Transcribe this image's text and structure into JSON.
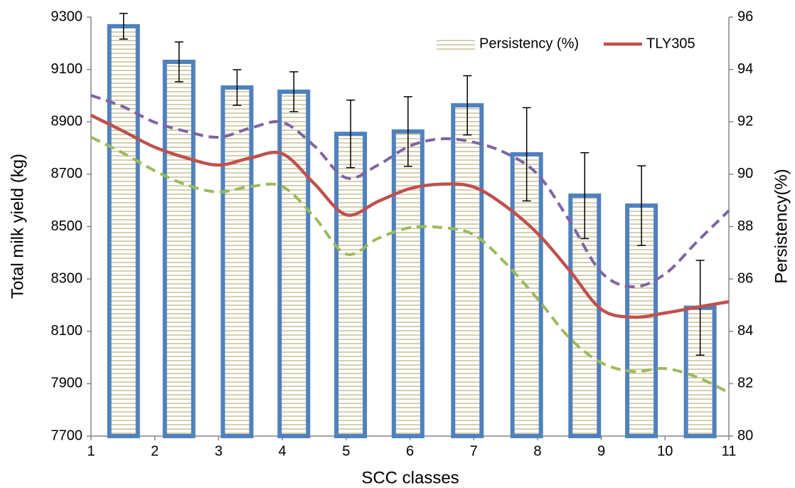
{
  "chart_data": {
    "type": "combo",
    "xlabel": "SCC classes",
    "ylabel": "Total milk yield (kg)",
    "y2label": "Persistency(%)",
    "xlim": [
      1,
      11
    ],
    "xticks": [
      1,
      2,
      3,
      4,
      5,
      6,
      7,
      8,
      9,
      10,
      11
    ],
    "ylim": [
      7700,
      9300
    ],
    "yticks": [
      7700,
      7900,
      8100,
      8300,
      8500,
      8700,
      8900,
      9100,
      9300
    ],
    "y2lim": [
      80,
      96
    ],
    "y2ticks": [
      80,
      82,
      84,
      86,
      88,
      90,
      92,
      94,
      96
    ],
    "legend": "top-right",
    "series": [
      {
        "name": "Persistency (%)",
        "type": "bar",
        "axis": "y2",
        "color": "#4f81bd",
        "x": [
          1.51,
          2.38,
          3.29,
          4.18,
          5.07,
          5.97,
          6.9,
          7.83,
          8.74,
          9.63,
          10.55
        ],
        "values": [
          95.65,
          94.29,
          93.31,
          93.15,
          91.54,
          91.63,
          92.63,
          90.76,
          89.18,
          88.8,
          84.9
        ],
        "errors": [
          0.49,
          0.76,
          0.68,
          0.76,
          1.29,
          1.33,
          1.13,
          1.78,
          1.64,
          1.52,
          1.81
        ]
      },
      {
        "name": "TLY305",
        "type": "line",
        "color": "#c0504d",
        "dash": false,
        "x": [
          1,
          1.5,
          2,
          2.5,
          3,
          3.5,
          4,
          4.5,
          5,
          5.5,
          6,
          6.5,
          7,
          7.5,
          8,
          8.5,
          9,
          9.5,
          10,
          10.5,
          11
        ],
        "values": [
          8925,
          8865,
          8803,
          8762,
          8735,
          8762,
          8778,
          8664,
          8545,
          8596,
          8645,
          8662,
          8651,
          8578,
          8474,
          8333,
          8184,
          8154,
          8170,
          8192,
          8213
        ]
      },
      {
        "type": "line",
        "color": "#8064a2",
        "dash": true,
        "x": [
          1,
          1.5,
          2,
          2.5,
          3,
          3.5,
          4,
          4.5,
          5,
          5.5,
          6,
          6.5,
          7,
          7.5,
          8,
          8.5,
          9,
          9.5,
          10,
          10.5,
          11
        ],
        "values": [
          9001,
          8958,
          8898,
          8863,
          8841,
          8876,
          8898,
          8808,
          8686,
          8735,
          8808,
          8835,
          8822,
          8781,
          8700,
          8523,
          8325,
          8270,
          8319,
          8442,
          8561
        ]
      },
      {
        "type": "line",
        "color": "#9bbb59",
        "dash": true,
        "x": [
          1,
          1.5,
          2,
          2.5,
          3,
          3.5,
          4,
          4.5,
          5,
          5.5,
          6,
          6.5,
          7,
          7.5,
          8,
          8.5,
          9,
          9.5,
          10,
          10.5,
          11
        ],
        "values": [
          8841,
          8781,
          8713,
          8659,
          8632,
          8653,
          8653,
          8537,
          8395,
          8455,
          8496,
          8496,
          8469,
          8360,
          8224,
          8075,
          7980,
          7947,
          7958,
          7925,
          7866
        ]
      }
    ]
  }
}
